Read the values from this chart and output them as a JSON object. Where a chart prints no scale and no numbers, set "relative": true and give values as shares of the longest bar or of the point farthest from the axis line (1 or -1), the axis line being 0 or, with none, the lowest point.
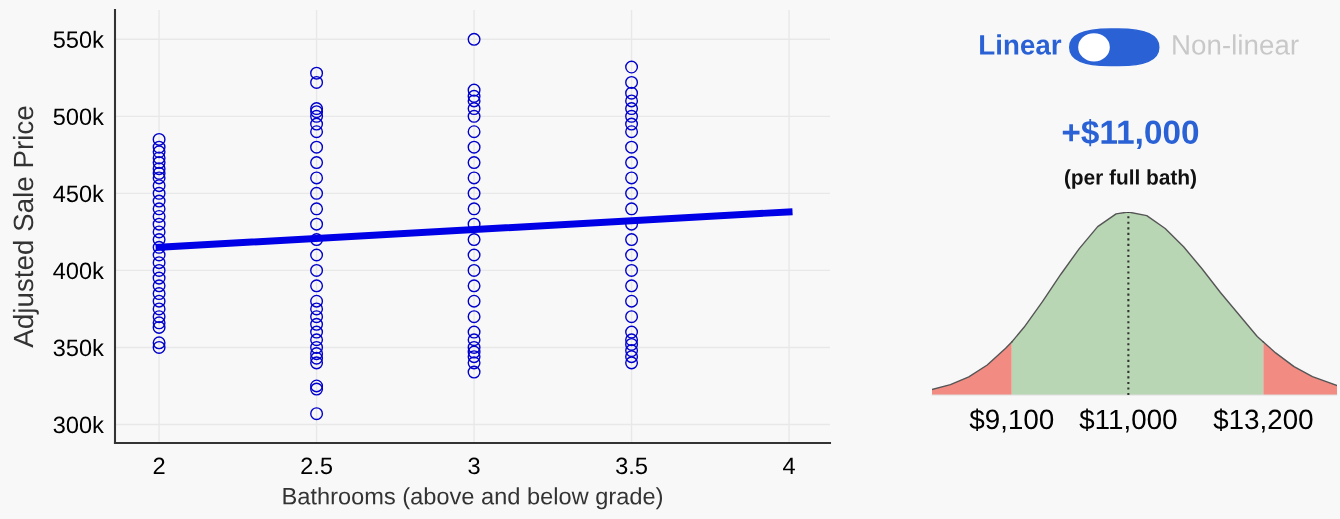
{
  "chart_data": [
    {
      "type": "scatter",
      "xlabel": "Bathrooms (above and below grade)",
      "ylabel": "Adjusted Sale Price",
      "xlim": [
        1.86,
        4.13
      ],
      "ylim": [
        288000,
        569000
      ],
      "xticks": [
        2,
        2.5,
        3,
        3.5,
        4
      ],
      "yticks": [
        {
          "value": 300000,
          "label": "300k"
        },
        {
          "value": 350000,
          "label": "350k"
        },
        {
          "value": 400000,
          "label": "400k"
        },
        {
          "value": 450000,
          "label": "450k"
        },
        {
          "value": 500000,
          "label": "500k"
        },
        {
          "value": 550000,
          "label": "550k"
        }
      ],
      "grid": true,
      "marker": "circle",
      "series": [
        {
          "color": "#0000cc",
          "x": [
            2,
            2,
            2,
            2,
            2,
            2,
            2,
            2,
            2,
            2,
            2,
            2,
            2,
            2,
            2,
            2,
            2,
            2,
            2,
            2,
            2,
            2,
            2,
            2,
            2,
            2,
            2,
            2,
            2,
            2,
            2.5,
            2.5,
            2.5,
            2.5,
            2.5,
            2.5,
            2.5,
            2.5,
            2.5,
            2.5,
            2.5,
            2.5,
            2.5,
            2.5,
            2.5,
            2.5,
            2.5,
            2.5,
            2.5,
            2.5,
            2.5,
            2.5,
            2.5,
            2.5,
            2.5,
            2.5,
            2.5,
            2.5,
            2.5,
            2.5,
            3,
            3,
            3,
            3,
            3,
            3,
            3,
            3,
            3,
            3,
            3,
            3,
            3,
            3,
            3,
            3,
            3,
            3,
            3,
            3,
            3,
            3,
            3,
            3,
            3,
            3,
            3.5,
            3.5,
            3.5,
            3.5,
            3.5,
            3.5,
            3.5,
            3.5,
            3.5,
            3.5,
            3.5,
            3.5,
            3.5,
            3.5,
            3.5,
            3.5,
            3.5,
            3.5,
            3.5,
            3.5,
            3.5,
            3.5,
            3.5,
            3.5,
            3.5,
            3.5
          ],
          "values": [
            350000,
            353000,
            363000,
            366000,
            370000,
            375000,
            380000,
            385000,
            390000,
            395000,
            400000,
            405000,
            410000,
            415000,
            420000,
            425000,
            430000,
            435000,
            440000,
            445000,
            450000,
            455000,
            460000,
            463000,
            466000,
            470000,
            473000,
            477000,
            480000,
            485000,
            307000,
            323000,
            325000,
            340000,
            343000,
            346000,
            350000,
            355000,
            360000,
            365000,
            370000,
            375000,
            380000,
            390000,
            400000,
            410000,
            420000,
            430000,
            440000,
            450000,
            460000,
            470000,
            480000,
            490000,
            495000,
            500000,
            503000,
            505000,
            522000,
            528000,
            334000,
            340000,
            344000,
            347000,
            350000,
            355000,
            360000,
            370000,
            380000,
            390000,
            400000,
            410000,
            420000,
            430000,
            440000,
            450000,
            460000,
            470000,
            480000,
            490000,
            500000,
            505000,
            510000,
            513000,
            517000,
            550000,
            340000,
            344000,
            348000,
            352000,
            355000,
            360000,
            370000,
            380000,
            390000,
            400000,
            410000,
            420000,
            430000,
            440000,
            450000,
            460000,
            470000,
            480000,
            490000,
            495000,
            500000,
            505000,
            510000,
            515000,
            522000,
            532000
          ]
        },
        {
          "type": "line",
          "color": "#0000e6",
          "marker": "none",
          "x": [
            2,
            4
          ],
          "values": [
            415000,
            438000
          ]
        }
      ]
    },
    {
      "type": "area",
      "title": "+$11,000",
      "subtitle": "(per full bath)",
      "annotations": [
        "Linear",
        "Non-linear"
      ],
      "relative": true,
      "tick_labels": "x",
      "xlim": [
        7800,
        14400
      ],
      "xticks": [
        {
          "value": 9100,
          "label": "$9,100"
        },
        {
          "value": 11000,
          "label": "$11,000"
        },
        {
          "value": 13200,
          "label": "$13,200"
        }
      ],
      "series": [
        {
          "color": "#f28b82",
          "x": [
            7800,
            8100,
            8400,
            8700,
            9000,
            9100
          ],
          "values": [
            0.03,
            0.057,
            0.099,
            0.164,
            0.255,
            0.29
          ]
        },
        {
          "color": "#b8d6b4",
          "x": [
            9100,
            9300,
            9600,
            9900,
            10200,
            10500,
            10800,
            11000,
            11300,
            11600,
            11900,
            12200,
            12500,
            12800,
            13100,
            13200
          ],
          "values": [
            0.29,
            0.37,
            0.51,
            0.66,
            0.8,
            0.92,
            0.99,
            1,
            0.98,
            0.91,
            0.81,
            0.69,
            0.56,
            0.44,
            0.32,
            0.29
          ]
        },
        {
          "color": "#f28b82",
          "x": [
            13200,
            13400,
            13700,
            14000,
            14400
          ],
          "values": [
            0.29,
            0.23,
            0.155,
            0.1,
            0.052
          ]
        }
      ],
      "ref_lines": [
        {
          "axis": "x",
          "value": 11000,
          "line_style": "dotted",
          "color": "#333333"
        }
      ]
    }
  ]
}
